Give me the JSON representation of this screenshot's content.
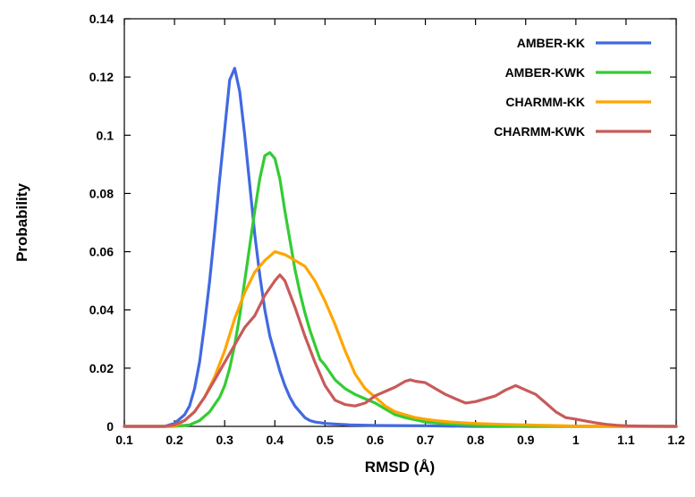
{
  "chart_data": {
    "type": "line",
    "xlabel": "RMSD (Å)",
    "ylabel": "Probability",
    "xlim": [
      0.1,
      1.2
    ],
    "ylim": [
      0,
      0.14
    ],
    "xticks": [
      0.1,
      0.2,
      0.3,
      0.4,
      0.5,
      0.6,
      0.7,
      0.8,
      0.9,
      1,
      1.1,
      1.2
    ],
    "xtick_labels": [
      "0.1",
      "0.2",
      "0.3",
      "0.4",
      "0.5",
      "0.6",
      "0.7",
      "0.8",
      "0.9",
      "1",
      "1.1",
      "1.2"
    ],
    "yticks": [
      0,
      0.02,
      0.04,
      0.06,
      0.08,
      0.1,
      0.12,
      0.14
    ],
    "ytick_labels": [
      "0",
      "0.02",
      "0.04",
      "0.06",
      "0.08",
      "0.1",
      "0.12",
      "0.14"
    ],
    "grid": false,
    "legend_position": "top-right",
    "series": [
      {
        "name": "AMBER-KK",
        "color": "#4169e1",
        "x": [
          0.1,
          0.18,
          0.2,
          0.22,
          0.23,
          0.24,
          0.25,
          0.26,
          0.27,
          0.28,
          0.29,
          0.3,
          0.31,
          0.32,
          0.33,
          0.34,
          0.35,
          0.36,
          0.37,
          0.38,
          0.39,
          0.4,
          0.41,
          0.42,
          0.43,
          0.44,
          0.45,
          0.46,
          0.47,
          0.48,
          0.5,
          0.55,
          0.6,
          0.7,
          0.8,
          1.2
        ],
        "y": [
          0,
          0,
          0.001,
          0.004,
          0.007,
          0.013,
          0.022,
          0.035,
          0.05,
          0.067,
          0.085,
          0.102,
          0.119,
          0.123,
          0.115,
          0.1,
          0.083,
          0.066,
          0.052,
          0.04,
          0.031,
          0.025,
          0.019,
          0.014,
          0.01,
          0.007,
          0.005,
          0.003,
          0.002,
          0.0015,
          0.001,
          0.0005,
          0.0003,
          0.0002,
          0,
          0
        ]
      },
      {
        "name": "AMBER-KWK",
        "color": "#33cc33",
        "x": [
          0.1,
          0.2,
          0.23,
          0.25,
          0.27,
          0.29,
          0.3,
          0.31,
          0.32,
          0.33,
          0.34,
          0.35,
          0.36,
          0.37,
          0.38,
          0.39,
          0.4,
          0.41,
          0.42,
          0.43,
          0.44,
          0.45,
          0.46,
          0.47,
          0.48,
          0.49,
          0.5,
          0.52,
          0.54,
          0.56,
          0.58,
          0.6,
          0.62,
          0.64,
          0.66,
          0.7,
          0.75,
          0.8,
          0.9,
          1.0,
          1.2
        ],
        "y": [
          0,
          0,
          0.0005,
          0.002,
          0.005,
          0.01,
          0.014,
          0.02,
          0.028,
          0.038,
          0.05,
          0.062,
          0.074,
          0.085,
          0.093,
          0.094,
          0.092,
          0.085,
          0.074,
          0.064,
          0.054,
          0.046,
          0.039,
          0.033,
          0.028,
          0.023,
          0.021,
          0.016,
          0.013,
          0.011,
          0.0095,
          0.008,
          0.006,
          0.004,
          0.003,
          0.0015,
          0.0008,
          0.0003,
          0,
          0,
          0
        ]
      },
      {
        "name": "CHARMM-KK",
        "color": "#ffa500",
        "x": [
          0.1,
          0.2,
          0.22,
          0.24,
          0.26,
          0.28,
          0.3,
          0.32,
          0.34,
          0.36,
          0.38,
          0.4,
          0.42,
          0.44,
          0.46,
          0.48,
          0.5,
          0.52,
          0.54,
          0.56,
          0.58,
          0.6,
          0.62,
          0.64,
          0.66,
          0.68,
          0.7,
          0.72,
          0.75,
          0.8,
          0.85,
          0.9,
          1.0,
          1.2
        ],
        "y": [
          0,
          0,
          0.002,
          0.005,
          0.01,
          0.017,
          0.026,
          0.037,
          0.046,
          0.053,
          0.057,
          0.06,
          0.059,
          0.057,
          0.055,
          0.05,
          0.043,
          0.035,
          0.026,
          0.018,
          0.013,
          0.01,
          0.007,
          0.005,
          0.004,
          0.003,
          0.0025,
          0.002,
          0.0015,
          0.001,
          0.0007,
          0.0005,
          0.0001,
          0
        ]
      },
      {
        "name": "CHARMM-KWK",
        "color": "#c85a5a",
        "x": [
          0.1,
          0.18,
          0.2,
          0.22,
          0.24,
          0.26,
          0.28,
          0.3,
          0.32,
          0.34,
          0.36,
          0.38,
          0.4,
          0.41,
          0.42,
          0.44,
          0.46,
          0.48,
          0.5,
          0.52,
          0.54,
          0.56,
          0.58,
          0.6,
          0.62,
          0.64,
          0.66,
          0.67,
          0.68,
          0.7,
          0.72,
          0.74,
          0.76,
          0.78,
          0.8,
          0.82,
          0.84,
          0.86,
          0.88,
          0.9,
          0.92,
          0.94,
          0.96,
          0.98,
          1.0,
          1.02,
          1.04,
          1.06,
          1.08,
          1.1,
          1.15,
          1.2
        ],
        "y": [
          0,
          0,
          0.0005,
          0.002,
          0.005,
          0.01,
          0.016,
          0.022,
          0.028,
          0.034,
          0.038,
          0.045,
          0.05,
          0.052,
          0.05,
          0.041,
          0.031,
          0.022,
          0.014,
          0.009,
          0.0075,
          0.007,
          0.008,
          0.0105,
          0.012,
          0.0135,
          0.0155,
          0.016,
          0.0155,
          0.015,
          0.013,
          0.011,
          0.0095,
          0.008,
          0.0085,
          0.0095,
          0.0105,
          0.0125,
          0.014,
          0.0125,
          0.011,
          0.008,
          0.005,
          0.003,
          0.0025,
          0.0018,
          0.0012,
          0.0007,
          0.0004,
          0.0002,
          5e-05,
          0
        ]
      }
    ]
  }
}
